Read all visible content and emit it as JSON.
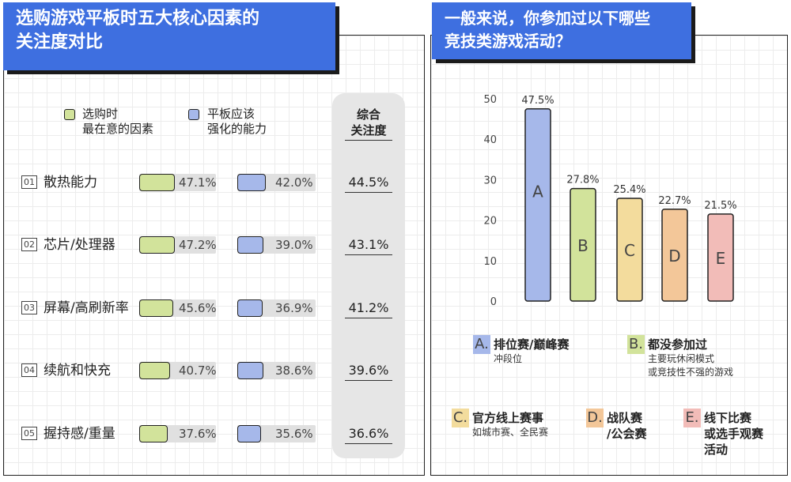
{
  "left": {
    "title_line1": "选购游戏平板时五大核心因素的",
    "title_line2": "关注度对比",
    "legend": {
      "a_line1": "选购时",
      "a_line2": "最在意的因素",
      "b_line1": "平板应该",
      "b_line2": "强化的能力",
      "total_line1": "综合",
      "total_line2": "关注度"
    },
    "colors": {
      "green": "#d2e39b",
      "blue": "#a6b8ea"
    },
    "rows": [
      {
        "num": "01",
        "label": "散热能力",
        "a": 47.1,
        "a_text": "47.1%",
        "b": 42.0,
        "b_text": "42.0%",
        "total": "44.5%"
      },
      {
        "num": "02",
        "label": "芯片/处理器",
        "a": 47.2,
        "a_text": "47.2%",
        "b": 39.0,
        "b_text": "39.0%",
        "total": "43.1%"
      },
      {
        "num": "03",
        "label": "屏幕/高刷新率",
        "a": 45.6,
        "a_text": "45.6%",
        "b": 36.9,
        "b_text": "36.9%",
        "total": "41.2%"
      },
      {
        "num": "04",
        "label": "续航和快充",
        "a": 40.7,
        "a_text": "40.7%",
        "b": 38.6,
        "b_text": "38.6%",
        "total": "39.6%"
      },
      {
        "num": "05",
        "label": "握持感/重量",
        "a": 37.6,
        "a_text": "37.6%",
        "b": 35.6,
        "b_text": "35.6%",
        "total": "36.6%"
      }
    ]
  },
  "right": {
    "title_line1": "一般来说，你参加过以下哪些",
    "title_line2": "竞技类游戏活动？",
    "legend": [
      {
        "letter": "A.",
        "main": "排位赛/巅峰赛",
        "sub1": "冲段位",
        "sub2": ""
      },
      {
        "letter": "B.",
        "main": "都没参加过",
        "sub1": "主要玩休闲模式",
        "sub2": "或竞技性不强的游戏"
      },
      {
        "letter": "C.",
        "main": "官方线上赛事",
        "sub1": "如城市赛、全民赛",
        "sub2": ""
      },
      {
        "letter": "D.",
        "main": "战队赛",
        "main2": "/公会赛",
        "sub1": "",
        "sub2": ""
      },
      {
        "letter": "E.",
        "main": "线下比赛",
        "main2": "或选手观赛",
        "main3": "活动",
        "sub1": "",
        "sub2": ""
      }
    ]
  },
  "chart_data": [
    {
      "type": "table",
      "title": "选购游戏平板时五大核心因素的关注度对比",
      "columns": [
        "选购时最在意的因素",
        "平板应该强化的能力",
        "综合关注度"
      ],
      "categories": [
        "散热能力",
        "芯片/处理器",
        "屏幕/高刷新率",
        "续航和快充",
        "握持感/重量"
      ],
      "series": [
        {
          "name": "选购时最在意的因素",
          "values": [
            47.1,
            47.2,
            45.6,
            40.7,
            37.6
          ]
        },
        {
          "name": "平板应该强化的能力",
          "values": [
            42.0,
            39.0,
            36.9,
            38.6,
            35.6
          ]
        },
        {
          "name": "综合关注度",
          "values": [
            44.5,
            43.1,
            41.2,
            39.6,
            36.6
          ]
        }
      ]
    },
    {
      "type": "bar",
      "title": "一般来说，你参加过以下哪些竞技类游戏活动？",
      "categories": [
        "A",
        "B",
        "C",
        "D",
        "E"
      ],
      "values": [
        47.5,
        27.8,
        25.4,
        22.7,
        21.5
      ],
      "value_labels": [
        "47.5%",
        "27.8%",
        "25.4%",
        "22.7%",
        "21.5%"
      ],
      "colors": [
        "#a6b8ea",
        "#d2e39b",
        "#f3dc9d",
        "#f3c799",
        "#f2bcb8"
      ],
      "yticks": [
        0,
        10,
        20,
        30,
        40,
        50
      ],
      "ylim": [
        0,
        50
      ],
      "xlabel": "",
      "ylabel": "",
      "grid": false
    }
  ]
}
